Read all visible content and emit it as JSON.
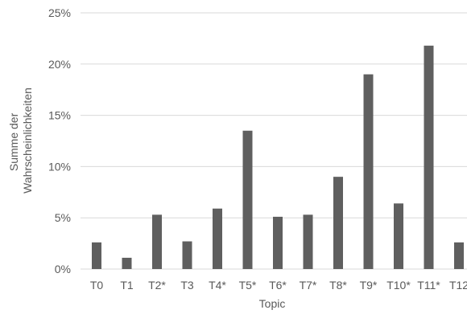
{
  "chart_data": {
    "type": "bar",
    "categories": [
      "T0",
      "T1",
      "T2*",
      "T3",
      "T4*",
      "T5*",
      "T6*",
      "T7*",
      "T8*",
      "T9*",
      "T10*",
      "T11*",
      "T12"
    ],
    "series": [
      {
        "values": [
          2.6,
          1.1,
          5.3,
          2.7,
          5.9,
          13.5,
          5.1,
          5.3,
          9.0,
          19.0,
          6.4,
          21.8,
          2.6
        ]
      }
    ],
    "xlabel": "Topic",
    "ylabel_lines": [
      "Summe der",
      "Wahrscheinlichkeiten"
    ],
    "ylim": [
      0,
      25
    ],
    "yticks": [
      0,
      5,
      10,
      15,
      20,
      25
    ],
    "ytick_labels": [
      "0%",
      "5%",
      "10%",
      "15%",
      "20%",
      "25%"
    ],
    "grid": "horizontal",
    "legend": "none",
    "colors": {
      "bar": "#5f5f5f",
      "grid": "#d9d9d9",
      "text": "#595959"
    }
  }
}
